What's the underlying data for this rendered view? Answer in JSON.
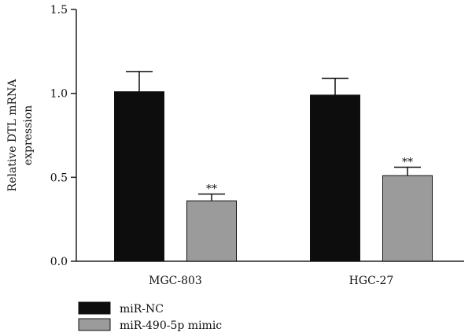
{
  "chart_data": {
    "type": "bar",
    "categories": [
      "MGC-803",
      "HGC-27"
    ],
    "series": [
      {
        "name": "miR-NC",
        "values": [
          1.01,
          0.99
        ],
        "errors": [
          0.12,
          0.1
        ],
        "color": "#0d0d0d",
        "significance": [
          "",
          ""
        ]
      },
      {
        "name": "miR-490-5p mimic",
        "values": [
          0.36,
          0.51
        ],
        "errors": [
          0.04,
          0.05
        ],
        "color": "#9b9b9b",
        "significance": [
          "**",
          "**"
        ]
      }
    ],
    "ylabel_lines": [
      "Relative DTL mRNA",
      "expression"
    ],
    "ylim": [
      0,
      1.5
    ],
    "yticks": [
      0.0,
      0.5,
      1.0,
      1.5
    ],
    "ytick_labels": [
      "0.0",
      "0.5",
      "1.0",
      "1.5"
    ],
    "legend_placement": "bottom-left",
    "grid": false
  }
}
